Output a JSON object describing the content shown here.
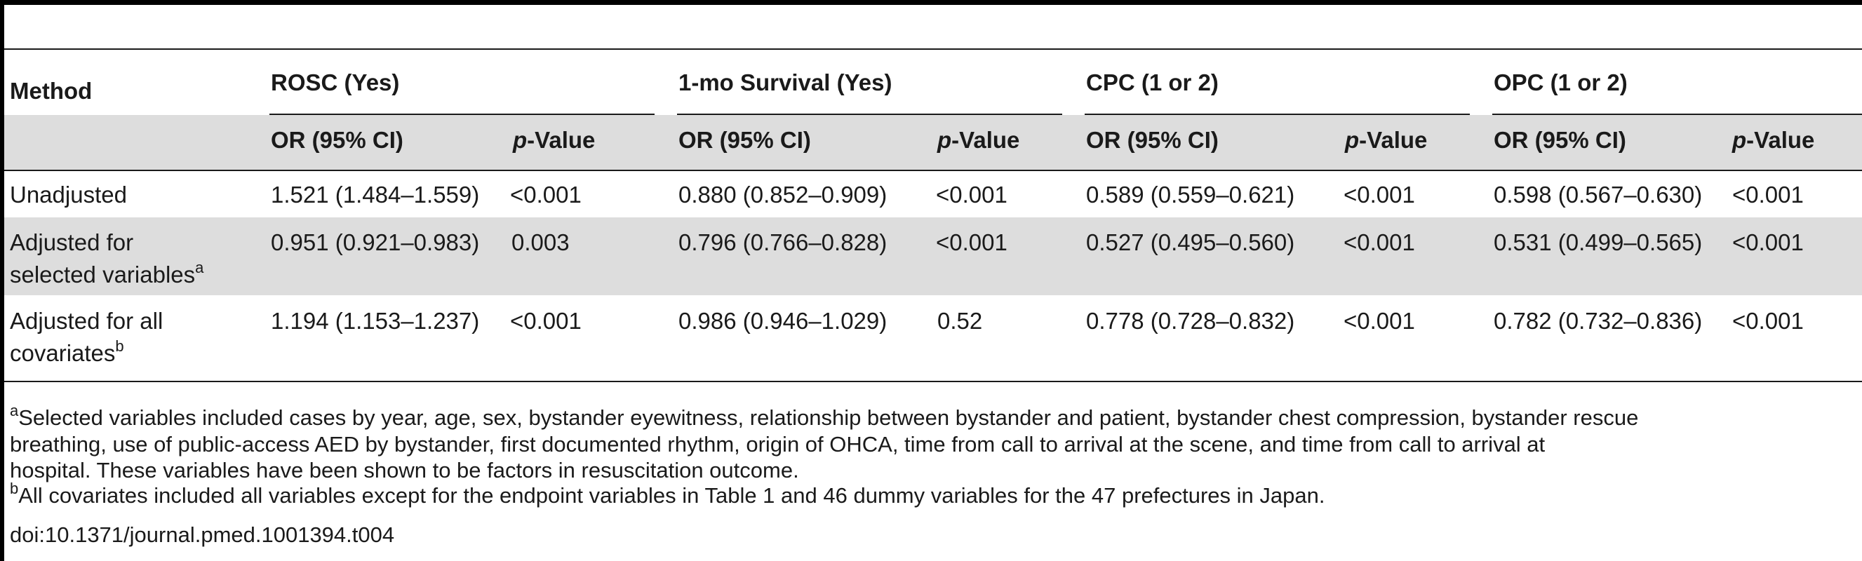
{
  "table": {
    "group_headers": {
      "method": "Method",
      "rosc": "ROSC (Yes)",
      "survival": "1-mo Survival (Yes)",
      "cpc": "CPC (1 or 2)",
      "opc": "OPC (1 or 2)"
    },
    "sub_headers": {
      "or_ci": "OR (95% CI)",
      "p_italic": "p",
      "p_rest": "-Value"
    },
    "rows": [
      {
        "method_line1": "Unadjusted",
        "method_line2": "",
        "sup": "",
        "cells": [
          "1.521 (1.484–1.559)",
          "<0.001",
          "0.880 (0.852–0.909)",
          "<0.001",
          "0.589 (0.559–0.621)",
          "<0.001",
          "0.598 (0.567–0.630)",
          "<0.001"
        ]
      },
      {
        "method_line1": "Adjusted for",
        "method_line2": "selected variables",
        "sup": "a",
        "cells": [
          "0.951 (0.921–0.983)",
          "0.003",
          "0.796 (0.766–0.828)",
          "<0.001",
          "0.527 (0.495–0.560)",
          "<0.001",
          "0.531 (0.499–0.565)",
          "<0.001"
        ]
      },
      {
        "method_line1": "Adjusted for all",
        "method_line2": "covariates",
        "sup": "b",
        "cells": [
          "1.194 (1.153–1.237)",
          "<0.001",
          "0.986 (0.946–1.029)",
          "0.52",
          "0.778 (0.728–0.832)",
          "<0.001",
          "0.782 (0.732–0.836)",
          "<0.001"
        ]
      }
    ]
  },
  "footnotes": {
    "a_mark": "a",
    "a_line1": "Selected variables included cases by year, age, sex, bystander eyewitness, relationship between bystander and patient, bystander chest compression, bystander rescue",
    "a_line2": "breathing, use of public-access AED by bystander, first documented rhythm, origin of OHCA, time from call to arrival at the scene, and time from call to arrival at",
    "a_line3": "hospital. These variables have been shown to be factors in resuscitation outcome.",
    "b_mark": "b",
    "b_line1": "All covariates included all variables except for the endpoint variables in Table 1 and 46 dummy variables for the 47 prefectures in Japan.",
    "doi": "doi:10.1371/journal.pmed.1001394.t004"
  }
}
